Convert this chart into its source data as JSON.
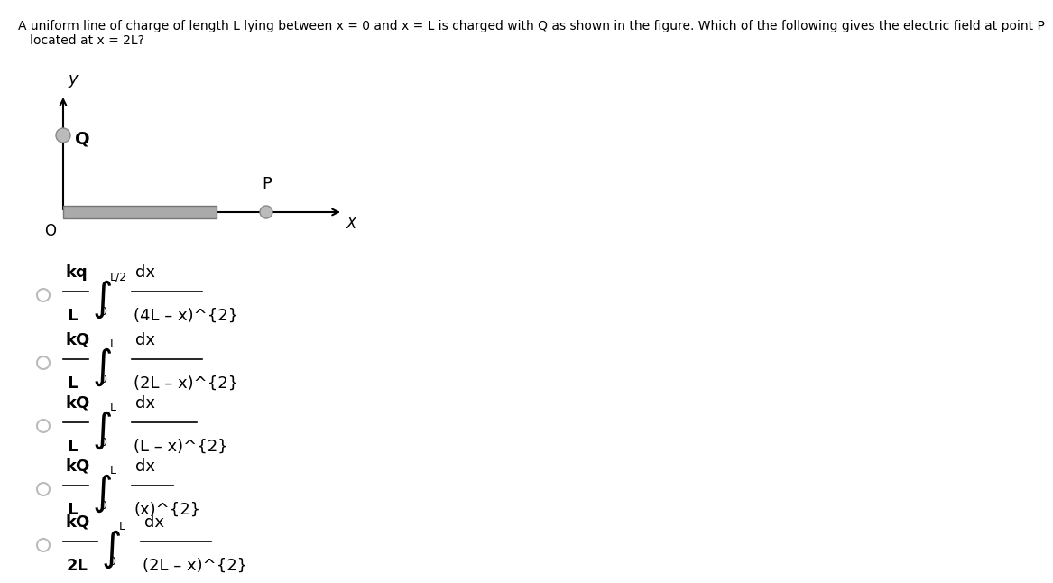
{
  "title_line1": "A uniform line of charge of length L lying between x = 0 and x = L is charged with Q as shown in the figure. Which of the following gives the electric field at point P",
  "title_line2": "   located at x = 2L?",
  "bg_color": "#ffffff",
  "text_color": "#000000",
  "circle_fill": "#bbbbbb",
  "circle_edge": "#888888",
  "bar_face": "#aaaaaa",
  "bar_edge": "#777777",
  "options": [
    {
      "coeff_num": "kq",
      "coeff_den": "L",
      "upper": "L/2",
      "lower": "0",
      "integrand_num": "dx",
      "integrand_den": "(4L – x)^{2}"
    },
    {
      "coeff_num": "kQ",
      "coeff_den": "L",
      "upper": "L",
      "lower": "0",
      "integrand_num": "dx",
      "integrand_den": "(2L – x)^{2}"
    },
    {
      "coeff_num": "kQ",
      "coeff_den": "L",
      "upper": "L",
      "lower": "0",
      "integrand_num": "dx",
      "integrand_den": "(L – x)^{2}"
    },
    {
      "coeff_num": "kQ",
      "coeff_den": "L",
      "upper": "L",
      "lower": "0",
      "integrand_num": "dx",
      "integrand_den": "(x)^{2}"
    },
    {
      "coeff_num": "kQ",
      "coeff_den": "2L",
      "upper": "L",
      "lower": "0",
      "integrand_num": "dx",
      "integrand_den": "(2L – x)^{2}"
    }
  ]
}
